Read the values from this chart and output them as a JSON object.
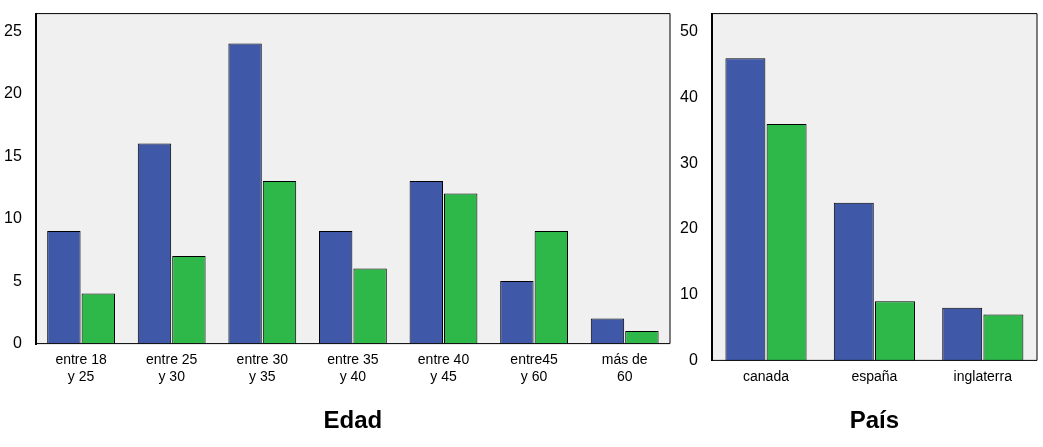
{
  "chart_data": [
    {
      "type": "bar",
      "xlabel": "Edad",
      "categories": [
        "entre 18\ny 25",
        "entre 25\ny 30",
        "entre 30\ny 35",
        "entre 35\ny 40",
        "entre 40\ny 45",
        "entre45\ny 60",
        "más de\n60"
      ],
      "series": [
        {
          "color": "#3f58a8",
          "values": [
            9,
            16,
            24,
            9,
            13,
            5,
            2
          ]
        },
        {
          "color": "#2eb84a",
          "values": [
            4,
            7,
            13,
            6,
            12,
            9,
            1
          ]
        }
      ],
      "ylim": [
        0,
        26.4
      ],
      "yticks": [
        0,
        5,
        10,
        15,
        20,
        25
      ]
    },
    {
      "type": "bar",
      "xlabel": "País",
      "categories": [
        "canada",
        "españa",
        "inglaterra"
      ],
      "series": [
        {
          "color": "#3f58a8",
          "values": [
            46,
            24,
            8
          ]
        },
        {
          "color": "#2eb84a",
          "values": [
            36,
            9,
            7
          ]
        }
      ],
      "ylim": [
        0,
        52.8
      ],
      "yticks": [
        0,
        10,
        20,
        30,
        40,
        50
      ]
    }
  ]
}
